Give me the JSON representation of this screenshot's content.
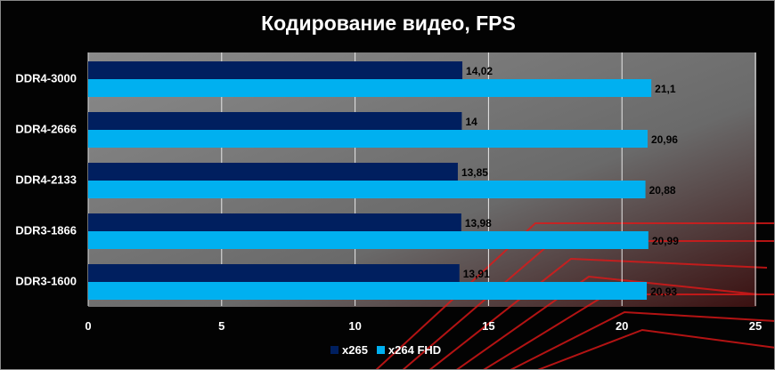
{
  "chart_data": {
    "type": "bar",
    "orientation": "horizontal",
    "title": "Кодирование видео, FPS",
    "categories": [
      "DDR4-3000",
      "DDR4-2666",
      "DDR4-2133",
      "DDR3-1866",
      "DDR3-1600"
    ],
    "series": [
      {
        "name": "x265",
        "color": "#001f5f",
        "values": [
          14.02,
          14,
          13.85,
          13.98,
          13.91
        ],
        "labels": [
          "14,02",
          "14",
          "13,85",
          "13,98",
          "13,91"
        ]
      },
      {
        "name": "x264 FHD",
        "color": "#00b0f0",
        "values": [
          21.1,
          20.96,
          20.88,
          20.99,
          20.93
        ],
        "labels": [
          "21,1",
          "20,96",
          "20,88",
          "20,99",
          "20,93"
        ]
      }
    ],
    "xlim": [
      0,
      25
    ],
    "xticks": [
      "0",
      "5",
      "10",
      "15",
      "20",
      "25"
    ],
    "grid": true,
    "legend": "bottom"
  }
}
